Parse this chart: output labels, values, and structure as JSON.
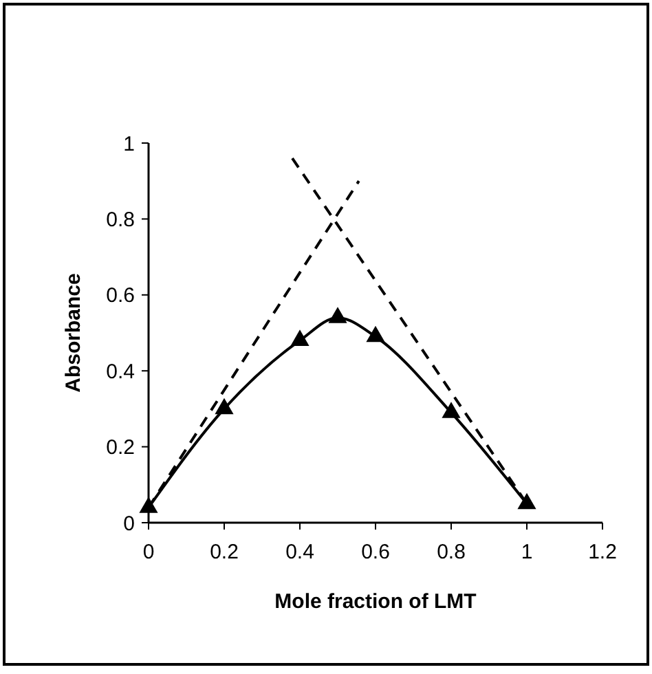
{
  "chart_data": {
    "type": "line",
    "xlabel": "Mole fraction of LMT",
    "ylabel": "Absorbance",
    "xlim": [
      0,
      1.2
    ],
    "xticks": [
      0,
      0.2,
      0.4,
      0.6,
      0.8,
      1,
      1.2
    ],
    "ylim": [
      0,
      1
    ],
    "yticks": [
      0,
      0.2,
      0.4,
      0.6,
      0.8,
      1
    ],
    "grid": false,
    "series": [
      {
        "color": "#000000",
        "marker": "triangle",
        "line_style": "solid",
        "x": [
          0,
          0.2,
          0.4,
          0.5,
          0.6,
          0.8,
          1
        ],
        "values": [
          0.04,
          0.3,
          0.48,
          0.54,
          0.49,
          0.29,
          0.05
        ]
      },
      {
        "color": "#000000",
        "marker": "none",
        "line_style": "dashed",
        "x": [
          0,
          0.556
        ],
        "values": [
          0.04,
          0.9
        ]
      },
      {
        "color": "#000000",
        "marker": "none",
        "line_style": "dashed",
        "x": [
          0.38,
          1
        ],
        "values": [
          0.96,
          0.05
        ]
      }
    ]
  }
}
